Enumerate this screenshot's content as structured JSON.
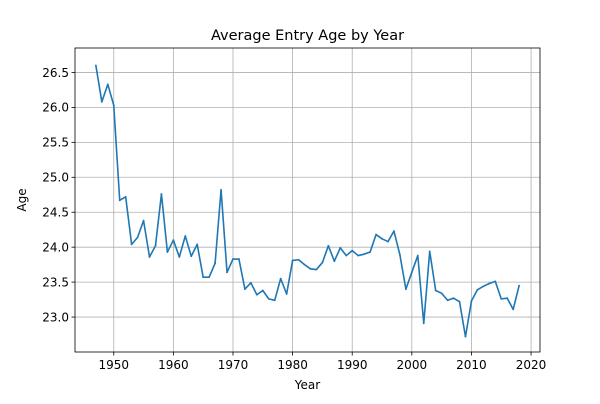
{
  "chart_data": {
    "type": "line",
    "title": "Average Entry Age by Year",
    "xlabel": "Year",
    "ylabel": "Age",
    "xlim": [
      1943.5,
      2021.5
    ],
    "ylim": [
      22.5,
      26.85
    ],
    "xticks": [
      1950,
      1960,
      1970,
      1980,
      1990,
      2000,
      2010,
      2020
    ],
    "yticks": [
      23.0,
      23.5,
      24.0,
      24.5,
      25.0,
      25.5,
      26.0,
      26.5
    ],
    "xtick_labels": [
      "1950",
      "1960",
      "1970",
      "1980",
      "1990",
      "2000",
      "2010",
      "2020"
    ],
    "ytick_labels": [
      "23.0",
      "23.5",
      "24.0",
      "24.5",
      "25.0",
      "25.5",
      "26.0",
      "26.5"
    ],
    "grid": true,
    "legend": "none",
    "series": [
      {
        "color": "#1f77b4",
        "x": [
          1947,
          1948,
          1949,
          1950,
          1951,
          1952,
          1953,
          1954,
          1955,
          1956,
          1957,
          1958,
          1959,
          1960,
          1961,
          1962,
          1963,
          1964,
          1965,
          1966,
          1967,
          1968,
          1969,
          1970,
          1971,
          1972,
          1973,
          1974,
          1975,
          1976,
          1977,
          1978,
          1979,
          1980,
          1981,
          1982,
          1983,
          1984,
          1985,
          1986,
          1987,
          1988,
          1989,
          1990,
          1991,
          1992,
          1993,
          1994,
          1995,
          1996,
          1997,
          1998,
          1999,
          2000,
          2001,
          2002,
          2003,
          2004,
          2005,
          2006,
          2007,
          2008,
          2009,
          2010,
          2011,
          2012,
          2013,
          2014,
          2015,
          2016,
          2017,
          2018
        ],
        "y": [
          26.6,
          26.08,
          26.33,
          26.03,
          24.67,
          24.72,
          24.04,
          24.14,
          24.38,
          23.86,
          24.02,
          24.76,
          23.93,
          24.1,
          23.86,
          24.16,
          23.87,
          24.04,
          23.57,
          23.57,
          23.77,
          24.82,
          23.64,
          23.83,
          23.83,
          23.4,
          23.49,
          23.32,
          23.38,
          23.26,
          23.24,
          23.55,
          23.33,
          23.81,
          23.82,
          23.75,
          23.69,
          23.68,
          23.78,
          24.02,
          23.8,
          23.99,
          23.88,
          23.95,
          23.88,
          23.9,
          23.93,
          24.18,
          24.12,
          24.08,
          24.23,
          23.89,
          23.4,
          23.64,
          23.88,
          22.91,
          23.94,
          23.38,
          23.34,
          23.24,
          23.27,
          23.22,
          22.72,
          23.23,
          23.39,
          23.44,
          23.48,
          23.51,
          23.26,
          23.27,
          23.11,
          23.45
        ]
      }
    ]
  }
}
